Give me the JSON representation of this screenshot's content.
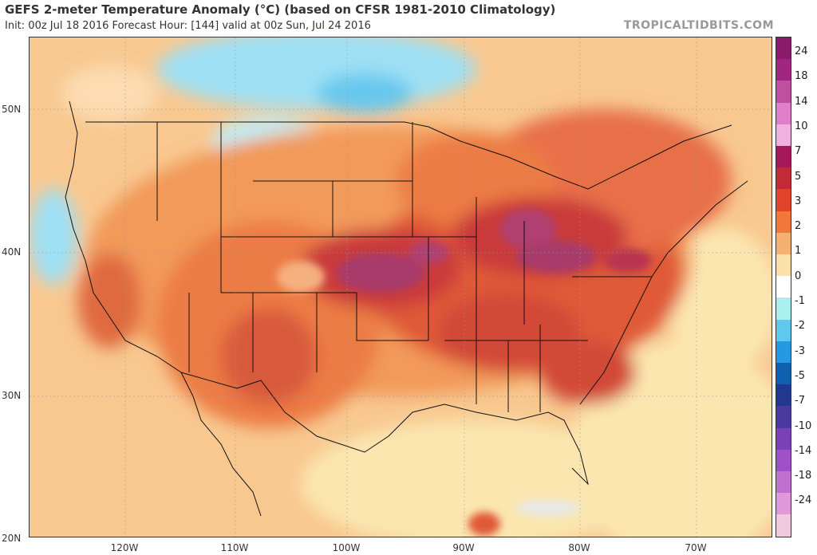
{
  "header": {
    "title": "GEFS 2-meter Temperature Anomaly (°C) (based on CFSR 1981-2010 Climatology)",
    "subtitle": "Init: 00z Jul 18 2016   Forecast Hour: [144]   valid at 00z Sun, Jul 24 2016",
    "credit": "TROPICALTIDBITS.COM"
  },
  "axes": {
    "lat_labels": [
      "50N",
      "40N",
      "30N",
      "20N"
    ],
    "lon_labels": [
      "120W",
      "110W",
      "100W",
      "90W",
      "80W",
      "70W"
    ]
  },
  "colorbar": {
    "labels": [
      "24",
      "18",
      "14",
      "10",
      "7",
      "5",
      "3",
      "2",
      "1",
      "0",
      "-1",
      "-2",
      "-3",
      "-5",
      "-7",
      "-10",
      "-14",
      "-18",
      "-24"
    ],
    "colors": [
      "#8b1a6b",
      "#a0267f",
      "#c04fa0",
      "#e07fc8",
      "#f0b0e0",
      "#a3195b",
      "#c22a38",
      "#e0452a",
      "#f07838",
      "#f8b070",
      "#fbe0a8",
      "#ffffff",
      "#a8f0f0",
      "#60c8f0",
      "#2898e0",
      "#1060b0",
      "#203890",
      "#4a3aa0",
      "#7a40b8",
      "#a050c8",
      "#c070d0",
      "#e098d8",
      "#f0c8e0"
    ]
  }
}
